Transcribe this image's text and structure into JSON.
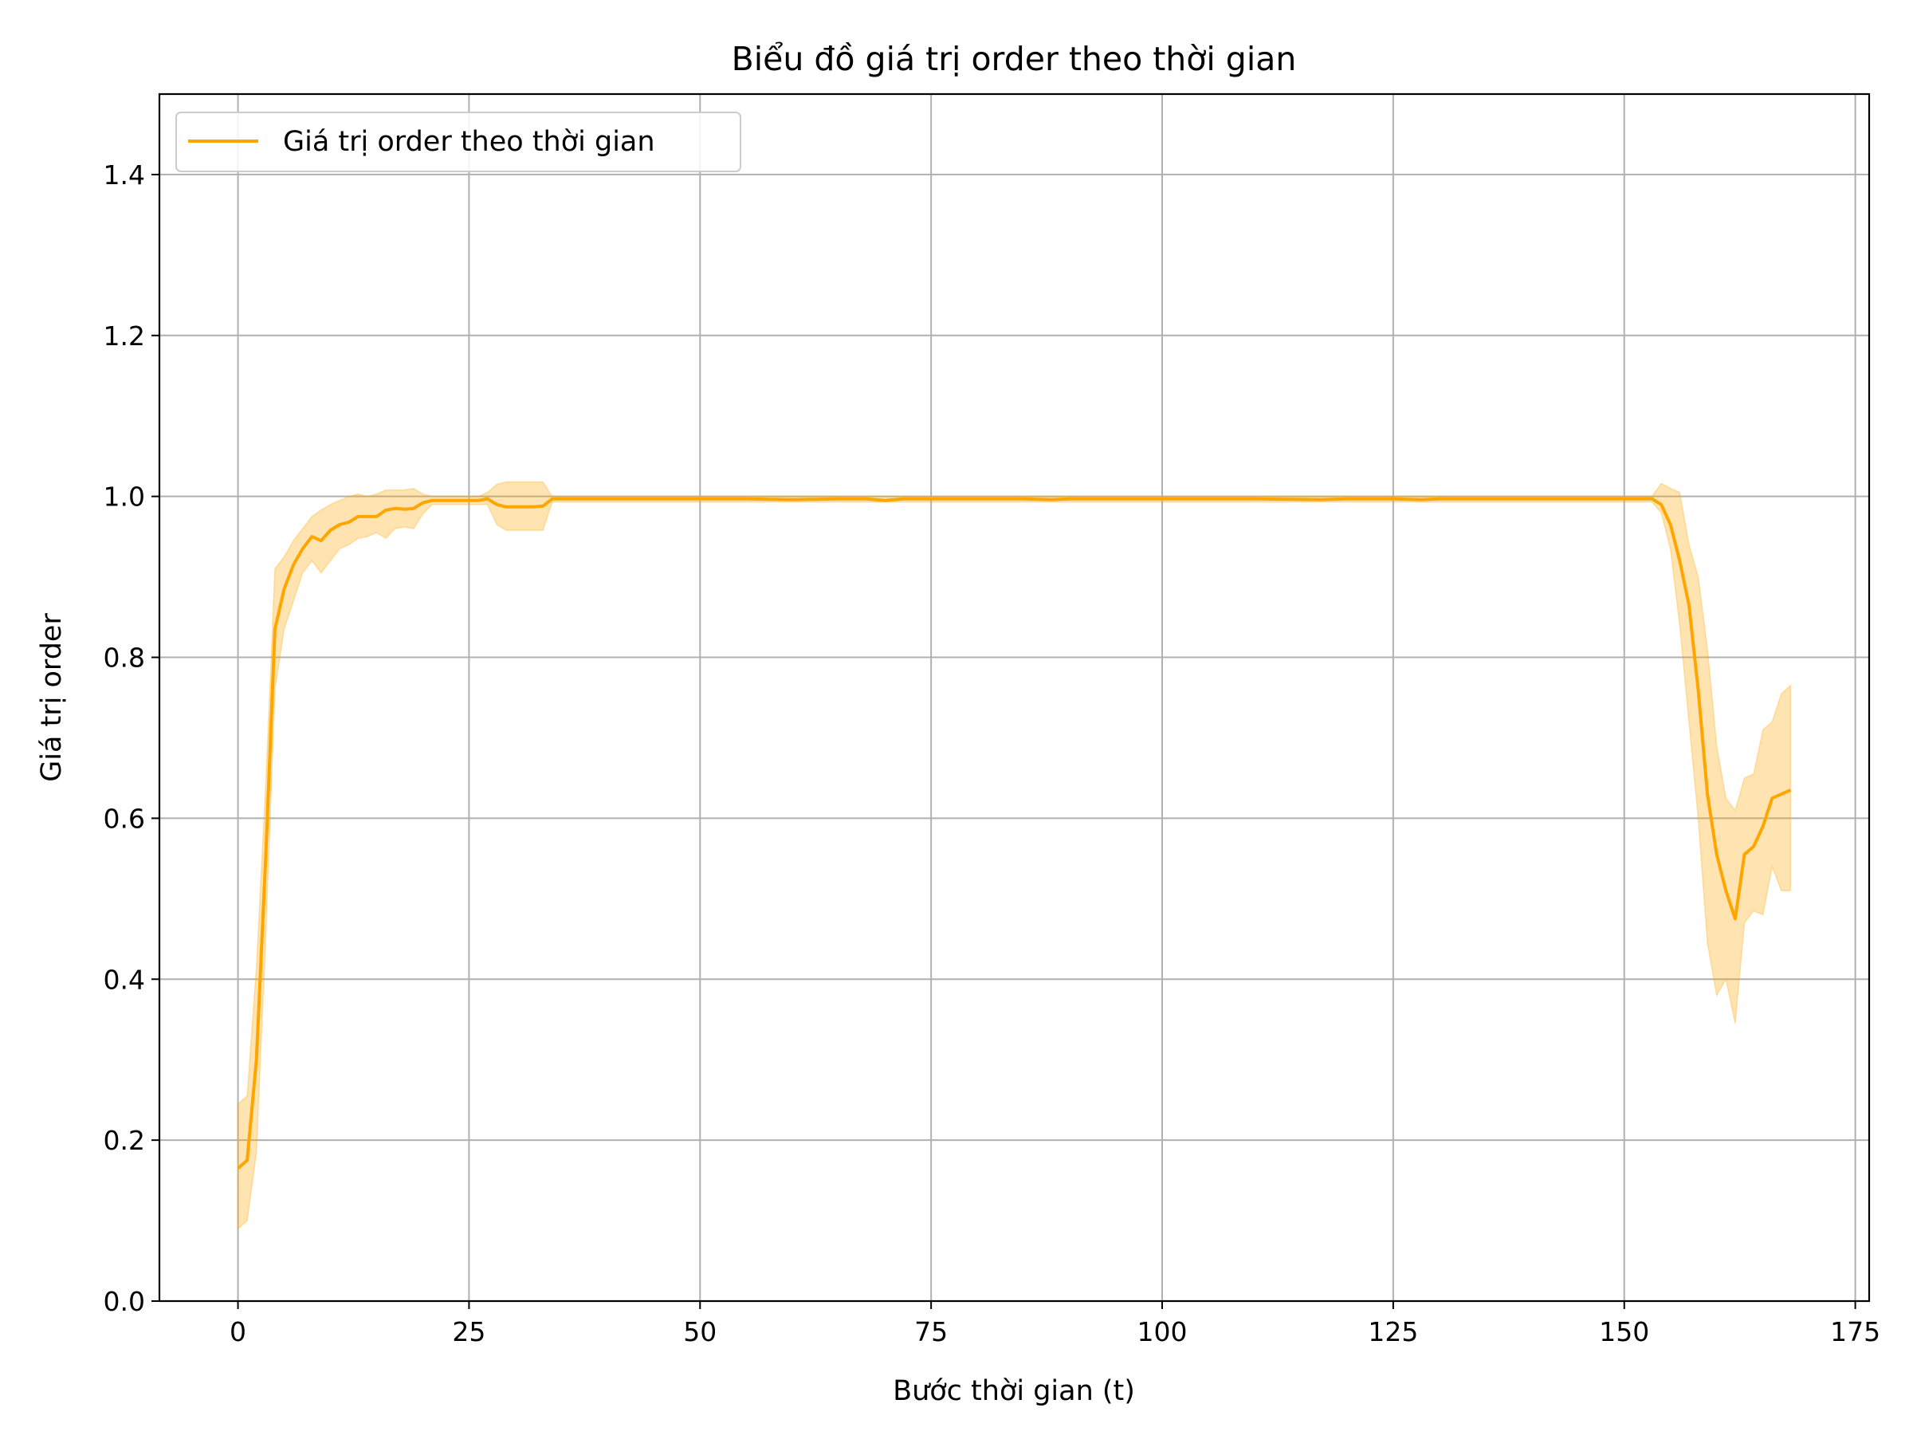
{
  "chart_data": {
    "type": "line",
    "title": "Biểu đồ giá trị order theo thời gian",
    "xlabel": "Bước thời gian (t)",
    "ylabel": "Giá trị order",
    "xlim": [
      -8.5,
      176.5
    ],
    "ylim": [
      0,
      1.5
    ],
    "xticks": [
      0,
      25,
      50,
      75,
      100,
      125,
      150,
      175
    ],
    "yticks": [
      0.0,
      0.2,
      0.4,
      0.6,
      0.8,
      1.0,
      1.2,
      1.4
    ],
    "xtick_labels": [
      "0",
      "25",
      "50",
      "75",
      "100",
      "125",
      "150",
      "175"
    ],
    "ytick_labels": [
      "0.0",
      "0.2",
      "0.4",
      "0.6",
      "0.8",
      "1.0",
      "1.2",
      "1.4"
    ],
    "grid": true,
    "legend_position": "top-left",
    "colors": {
      "line": "#ffa500",
      "band": "#ffa500",
      "grid": "#b0b0b0"
    },
    "series": [
      {
        "name": "Giá trị order theo thời gian",
        "x": [
          0,
          1,
          2,
          3,
          4,
          5,
          6,
          7,
          8,
          9,
          10,
          11,
          12,
          13,
          14,
          15,
          16,
          17,
          18,
          19,
          20,
          21,
          22,
          23,
          24,
          25,
          26,
          27,
          28,
          29,
          30,
          31,
          32,
          33,
          34,
          35,
          36,
          40,
          45,
          50,
          55,
          60,
          65,
          68,
          70,
          72,
          75,
          80,
          85,
          88,
          90,
          95,
          100,
          105,
          110,
          117,
          120,
          125,
          128,
          130,
          135,
          140,
          145,
          150,
          153,
          154,
          155,
          156,
          157,
          158,
          159,
          160,
          161,
          162,
          163,
          164,
          165,
          166,
          167,
          168
        ],
        "y": [
          0.165,
          0.175,
          0.3,
          0.55,
          0.835,
          0.885,
          0.915,
          0.935,
          0.95,
          0.945,
          0.958,
          0.965,
          0.968,
          0.975,
          0.975,
          0.975,
          0.983,
          0.985,
          0.984,
          0.985,
          0.992,
          0.995,
          0.995,
          0.995,
          0.995,
          0.995,
          0.995,
          0.997,
          0.99,
          0.987,
          0.987,
          0.987,
          0.987,
          0.988,
          0.997,
          0.997,
          0.997,
          0.997,
          0.997,
          0.997,
          0.997,
          0.996,
          0.997,
          0.997,
          0.995,
          0.997,
          0.997,
          0.997,
          0.997,
          0.996,
          0.997,
          0.997,
          0.997,
          0.997,
          0.997,
          0.996,
          0.997,
          0.997,
          0.996,
          0.997,
          0.997,
          0.997,
          0.997,
          0.997,
          0.997,
          0.99,
          0.965,
          0.92,
          0.865,
          0.76,
          0.63,
          0.555,
          0.51,
          0.475,
          0.555,
          0.565,
          0.59,
          0.625,
          0.63,
          0.635
        ],
        "lower": [
          0.09,
          0.1,
          0.185,
          0.45,
          0.76,
          0.835,
          0.87,
          0.905,
          0.92,
          0.905,
          0.92,
          0.935,
          0.94,
          0.948,
          0.95,
          0.955,
          0.948,
          0.96,
          0.962,
          0.96,
          0.978,
          0.99,
          0.99,
          0.99,
          0.99,
          0.99,
          0.99,
          0.99,
          0.965,
          0.958,
          0.958,
          0.958,
          0.958,
          0.958,
          0.993,
          0.993,
          0.993,
          0.993,
          0.993,
          0.993,
          0.993,
          0.993,
          0.993,
          0.993,
          0.993,
          0.993,
          0.993,
          0.993,
          0.993,
          0.993,
          0.993,
          0.993,
          0.993,
          0.993,
          0.993,
          0.993,
          0.993,
          0.993,
          0.993,
          0.993,
          0.993,
          0.993,
          0.993,
          0.993,
          0.993,
          0.98,
          0.935,
          0.84,
          0.72,
          0.6,
          0.445,
          0.38,
          0.4,
          0.345,
          0.47,
          0.485,
          0.48,
          0.54,
          0.51,
          0.51
        ],
        "upper": [
          0.245,
          0.255,
          0.415,
          0.64,
          0.91,
          0.925,
          0.945,
          0.96,
          0.975,
          0.983,
          0.99,
          0.995,
          1.0,
          1.003,
          1.0,
          1.003,
          1.008,
          1.008,
          1.008,
          1.01,
          1.003,
          1.0,
          1.0,
          1.0,
          1.0,
          1.0,
          1.0,
          1.005,
          1.015,
          1.018,
          1.018,
          1.018,
          1.018,
          1.018,
          1.0,
          1.0,
          1.0,
          1.0,
          1.0,
          1.0,
          1.0,
          1.0,
          1.0,
          1.0,
          1.0,
          1.0,
          1.0,
          1.0,
          1.0,
          1.0,
          1.0,
          1.0,
          1.0,
          1.0,
          1.0,
          1.0,
          1.0,
          1.0,
          1.0,
          1.0,
          1.0,
          1.0,
          1.0,
          1.0,
          1.0,
          1.016,
          1.01,
          1.005,
          0.94,
          0.9,
          0.81,
          0.69,
          0.625,
          0.61,
          0.65,
          0.655,
          0.71,
          0.72,
          0.755,
          0.765
        ]
      }
    ]
  }
}
